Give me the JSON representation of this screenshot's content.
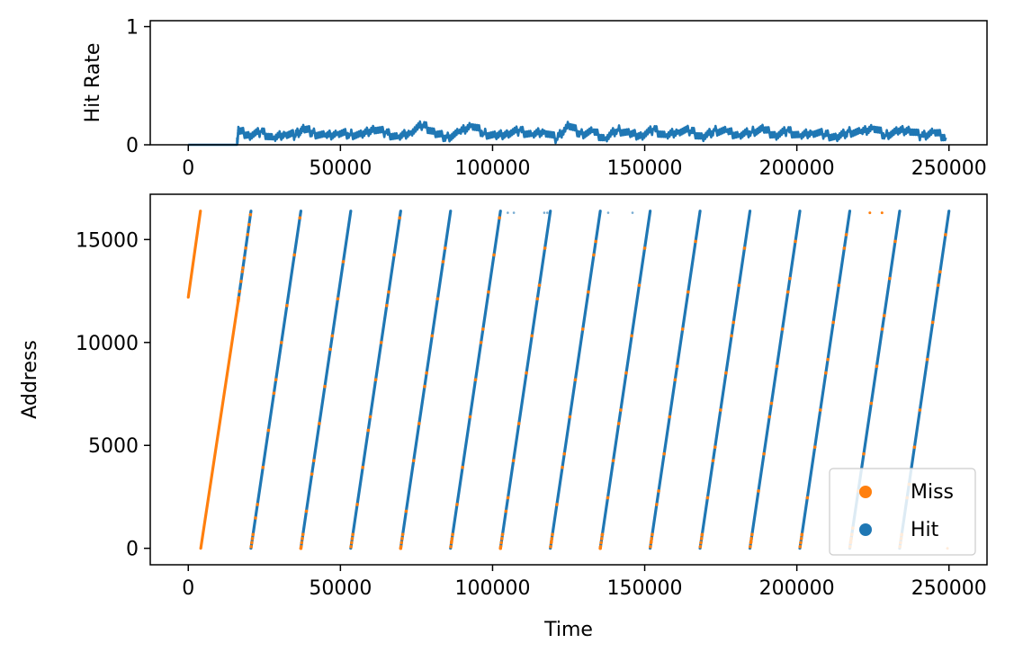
{
  "chart_data": [
    {
      "type": "line",
      "panel": "hit-rate",
      "ylabel": "Hit Rate",
      "xlabel": "",
      "xlim": [
        -12500,
        262500
      ],
      "ylim": [
        0,
        1.05
      ],
      "xticks": [
        0,
        50000,
        100000,
        150000,
        200000,
        250000
      ],
      "xtick_labels": [
        "0",
        "50000",
        "100000",
        "150000",
        "200000",
        "250000"
      ],
      "yticks": [
        0,
        1
      ],
      "ytick_labels": [
        "0",
        "1"
      ],
      "grid": false,
      "series": [
        {
          "color": "#1f77b4",
          "x": [
            0,
            16000,
            16500,
            20000,
            24000,
            28000,
            32000,
            35000,
            38000,
            41000,
            45000,
            49000,
            53000,
            57000,
            61000,
            65000,
            69000,
            73000,
            77000,
            81000,
            85000,
            89000,
            93000,
            97000,
            101000,
            105000,
            109000,
            113000,
            117000,
            121000,
            125000,
            129000,
            133000,
            137000,
            141000,
            145000,
            149000,
            153000,
            157000,
            161000,
            165000,
            169000,
            173000,
            177000,
            181000,
            185000,
            189000,
            193000,
            197000,
            201000,
            205000,
            209000,
            213000,
            217000,
            221000,
            225000,
            229000,
            233000,
            237000,
            241000,
            245000,
            249000
          ],
          "y": [
            0.0,
            0.0,
            0.12,
            0.08,
            0.11,
            0.05,
            0.1,
            0.08,
            0.14,
            0.1,
            0.07,
            0.1,
            0.09,
            0.08,
            0.14,
            0.1,
            0.06,
            0.11,
            0.17,
            0.1,
            0.06,
            0.1,
            0.17,
            0.1,
            0.07,
            0.1,
            0.12,
            0.08,
            0.12,
            0.05,
            0.17,
            0.09,
            0.11,
            0.05,
            0.13,
            0.09,
            0.08,
            0.13,
            0.07,
            0.12,
            0.12,
            0.06,
            0.12,
            0.11,
            0.08,
            0.11,
            0.13,
            0.08,
            0.12,
            0.07,
            0.11,
            0.09,
            0.06,
            0.11,
            0.1,
            0.15,
            0.08,
            0.11,
            0.13,
            0.07,
            0.11,
            0.06
          ]
        }
      ]
    },
    {
      "type": "scatter",
      "panel": "address-trace",
      "xlabel": "Time",
      "ylabel": "Address",
      "xlim": [
        -12500,
        262500
      ],
      "ylim": [
        -800,
        17200
      ],
      "xticks": [
        0,
        50000,
        100000,
        150000,
        200000,
        250000
      ],
      "xtick_labels": [
        "0",
        "50000",
        "100000",
        "150000",
        "200000",
        "250000"
      ],
      "yticks": [
        0,
        5000,
        10000,
        15000
      ],
      "ytick_labels": [
        "0",
        "5000",
        "10000",
        "15000"
      ],
      "grid": false,
      "legend_position": "lower-right",
      "sweep_period": 16400,
      "address_max": 16383,
      "series": [
        {
          "name": "Miss",
          "color": "#ff7f0e",
          "segments": [
            {
              "x": [
                0,
                4000
              ],
              "y": [
                12200,
                16383
              ]
            },
            {
              "x": [
                4100,
                16400
              ],
              "y": [
                0,
                12000
              ]
            }
          ],
          "points": [
            {
              "x": 224000,
              "y": 16300
            },
            {
              "x": 228000,
              "y": 16300
            },
            {
              "x": 249500,
              "y": 0
            }
          ]
        },
        {
          "name": "Hit",
          "color": "#1f77b4",
          "segments": [
            {
              "x": [
                16400,
                20600
              ],
              "y": [
                12000,
                16383
              ]
            },
            {
              "x": [
                20600,
                37000
              ],
              "y": [
                0,
                16383
              ]
            },
            {
              "x": [
                37000,
                53400
              ],
              "y": [
                0,
                16383
              ]
            },
            {
              "x": [
                53400,
                69800
              ],
              "y": [
                0,
                16383
              ]
            },
            {
              "x": [
                69800,
                86200
              ],
              "y": [
                0,
                16383
              ]
            },
            {
              "x": [
                86200,
                102600
              ],
              "y": [
                0,
                16383
              ]
            },
            {
              "x": [
                102600,
                119000
              ],
              "y": [
                0,
                16383
              ]
            },
            {
              "x": [
                119000,
                135400
              ],
              "y": [
                0,
                16383
              ]
            },
            {
              "x": [
                135400,
                151800
              ],
              "y": [
                0,
                16383
              ]
            },
            {
              "x": [
                151800,
                168200
              ],
              "y": [
                0,
                16383
              ]
            },
            {
              "x": [
                168200,
                184600
              ],
              "y": [
                0,
                16383
              ]
            },
            {
              "x": [
                184600,
                201000
              ],
              "y": [
                0,
                16383
              ]
            },
            {
              "x": [
                201000,
                217400
              ],
              "y": [
                0,
                16383
              ]
            },
            {
              "x": [
                217400,
                233800
              ],
              "y": [
                0,
                16383
              ]
            },
            {
              "x": [
                233800,
                250000
              ],
              "y": [
                0,
                16383
              ]
            }
          ],
          "points": [
            {
              "x": 105000,
              "y": 16300
            },
            {
              "x": 107000,
              "y": 16300
            },
            {
              "x": 117000,
              "y": 16300
            },
            {
              "x": 118000,
              "y": 16300
            },
            {
              "x": 138000,
              "y": 16300
            },
            {
              "x": 146000,
              "y": 16300
            }
          ]
        }
      ]
    }
  ]
}
